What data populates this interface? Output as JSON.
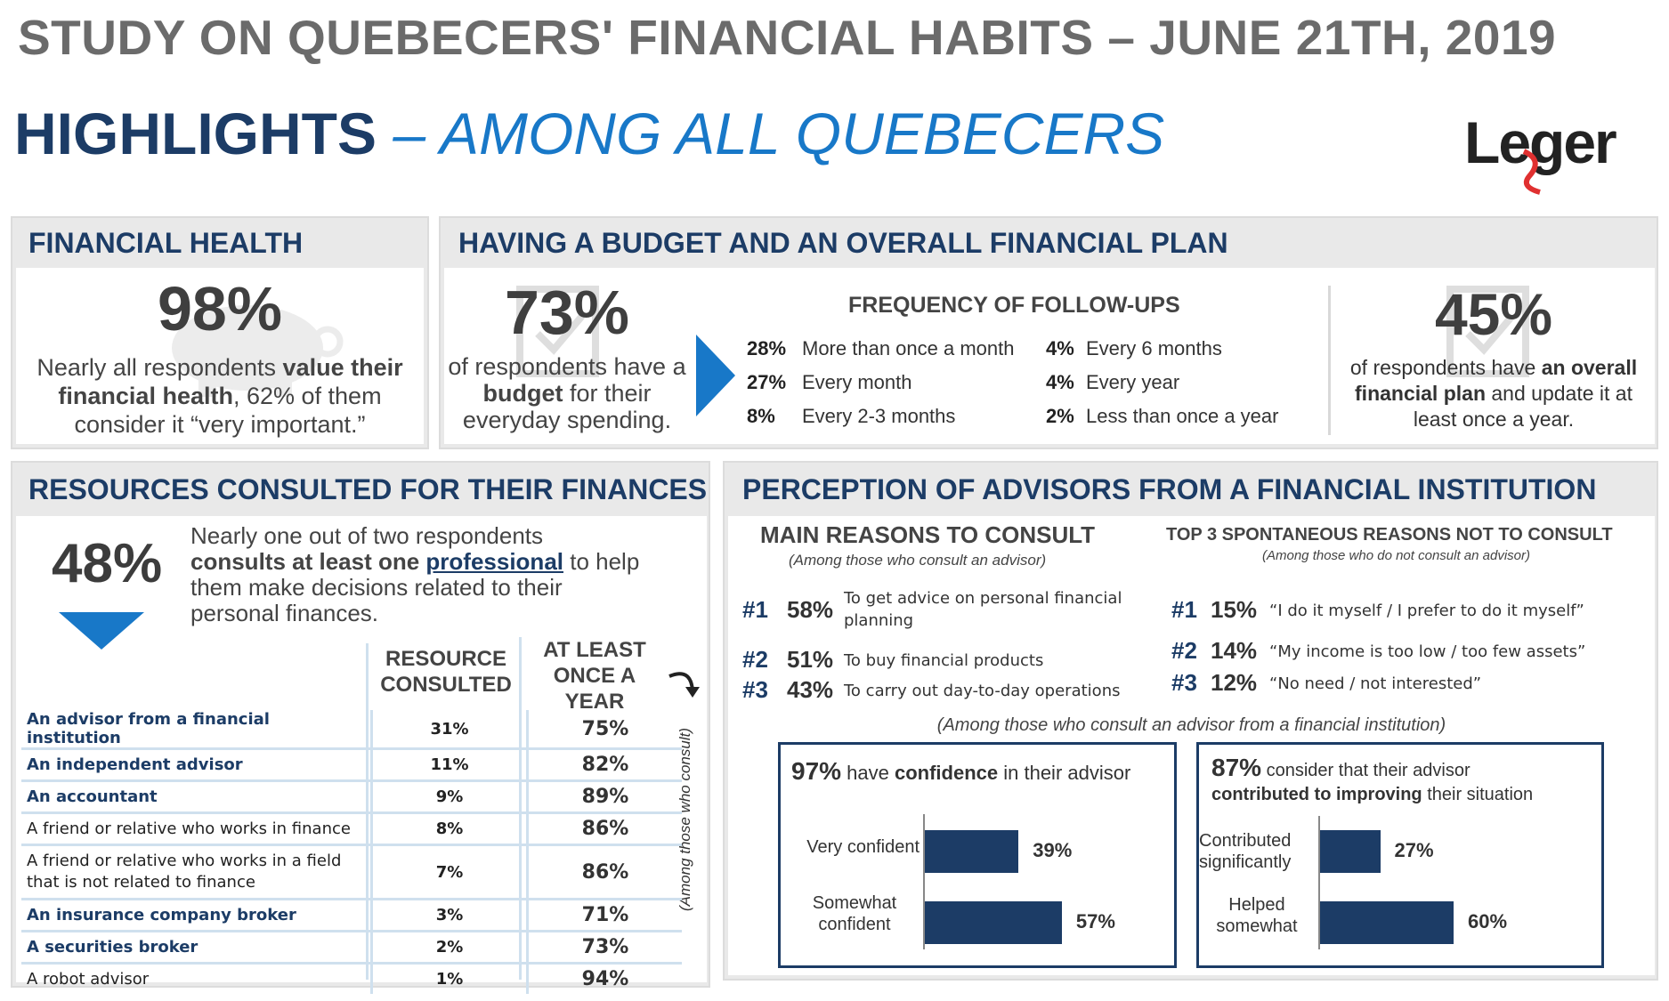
{
  "header": {
    "title": "STUDY ON QUEBECERS' FINANCIAL HABITS – JUNE 21TH, 2019",
    "highlights_main": "HIGHLIGHTS",
    "highlights_sub": "– AMONG ALL QUEBECERS",
    "logo": "Leger"
  },
  "financial_health": {
    "heading": "FINANCIAL HEALTH",
    "pct": "98%",
    "line1_pre": "Nearly all respondents ",
    "line1_bold": "value their",
    "line2_bold": "financial health",
    "line2_post": ", 62% of them",
    "line3": "consider it “very important.”"
  },
  "budget": {
    "heading": "HAVING A BUDGET AND AN OVERALL FINANCIAL PLAN",
    "pct": "73%",
    "line1": "of respondents have a",
    "line2_bold": "budget",
    "line2_post": " for their",
    "line3": "everyday spending.",
    "freq_title": "FREQUENCY OF FOLLOW-UPS",
    "freq": [
      {
        "pct": "28%",
        "label": "More than once a month"
      },
      {
        "pct": "27%",
        "label": "Every month"
      },
      {
        "pct": "8%",
        "label": "Every 2-3 months"
      },
      {
        "pct": "4%",
        "label": "Every 6 months"
      },
      {
        "pct": "4%",
        "label": "Every year"
      },
      {
        "pct": "2%",
        "label": "Less than once a year"
      }
    ],
    "plan_pct": "45%",
    "plan_line1_pre": "of respondents have ",
    "plan_line1_bold": "an overall",
    "plan_line2_bold": "financial plan",
    "plan_line2_post": " and update it at",
    "plan_line3": "least once a year."
  },
  "resources": {
    "heading": "RESOURCES CONSULTED FOR THEIR FINANCES",
    "pct": "48%",
    "desc1": "Nearly one out of two respondents",
    "desc2_bold": "consults at least one ",
    "desc2_link": "professional",
    "desc2_post": " to help",
    "desc3": "them make decisions related to their",
    "desc4": "personal finances.",
    "col1": "RESOURCE CONSULTED",
    "col2": "AT LEAST ONCE A YEAR",
    "side_note": "(Among those who consult)",
    "rows": [
      {
        "name": "An advisor from a financial institution",
        "v1": "31%",
        "v2": "75%"
      },
      {
        "name": "An independent advisor",
        "v1": "11%",
        "v2": "82%"
      },
      {
        "name": "An accountant",
        "v1": "9%",
        "v2": "89%"
      },
      {
        "name": "A friend or relative who works in finance",
        "v1": "8%",
        "v2": "86%"
      },
      {
        "name": "A friend or relative who works in a field that is not related to finance",
        "v1": "7%",
        "v2": "86%"
      },
      {
        "name": "An insurance company broker",
        "v1": "3%",
        "v2": "71%"
      },
      {
        "name": "A securities broker",
        "v1": "2%",
        "v2": "73%"
      },
      {
        "name": "A robot advisor",
        "v1": "1%",
        "v2": "94%"
      }
    ]
  },
  "perception": {
    "heading": "PERCEPTION OF ADVISORS FROM A FINANCIAL INSTITUTION",
    "main_title": "MAIN REASONS TO CONSULT",
    "main_sub": "(Among those who consult an advisor)",
    "main": [
      {
        "rank": "#1",
        "pct": "58%",
        "text": "To get advice on personal financial planning"
      },
      {
        "rank": "#2",
        "pct": "51%",
        "text": "To buy financial products"
      },
      {
        "rank": "#3",
        "pct": "43%",
        "text": "To carry out day-to-day operations"
      }
    ],
    "not_title": "TOP 3 SPONTANEOUS REASONS NOT TO CONSULT",
    "not_sub": "(Among those who do not consult an advisor)",
    "not": [
      {
        "rank": "#1",
        "pct": "15%",
        "text": "“I do it myself / I prefer to do it myself”"
      },
      {
        "rank": "#2",
        "pct": "14%",
        "text": "“My income is too low / too few assets”"
      },
      {
        "rank": "#3",
        "pct": "12%",
        "text": "“No need / not interested”"
      }
    ],
    "among_note": "(Among those who consult an advisor from a financial institution)",
    "confidence": {
      "pct": "97%",
      "pre": " have ",
      "bold": "confidence",
      "post": " in their advisor",
      "bars": [
        {
          "label": "Very confident",
          "value": 39,
          "text": "39%"
        },
        {
          "label": "Somewhat confident",
          "value": 57,
          "text": "57%"
        }
      ]
    },
    "improve": {
      "pct": "87%",
      "line1": " consider that their advisor",
      "line2_bold": "contributed to improving",
      "line2_post": " their situation",
      "bars": [
        {
          "label": "Contributed significantly",
          "value": 27,
          "text": "27%"
        },
        {
          "label": "Helped somewhat",
          "value": 60,
          "text": "60%"
        }
      ]
    }
  }
}
